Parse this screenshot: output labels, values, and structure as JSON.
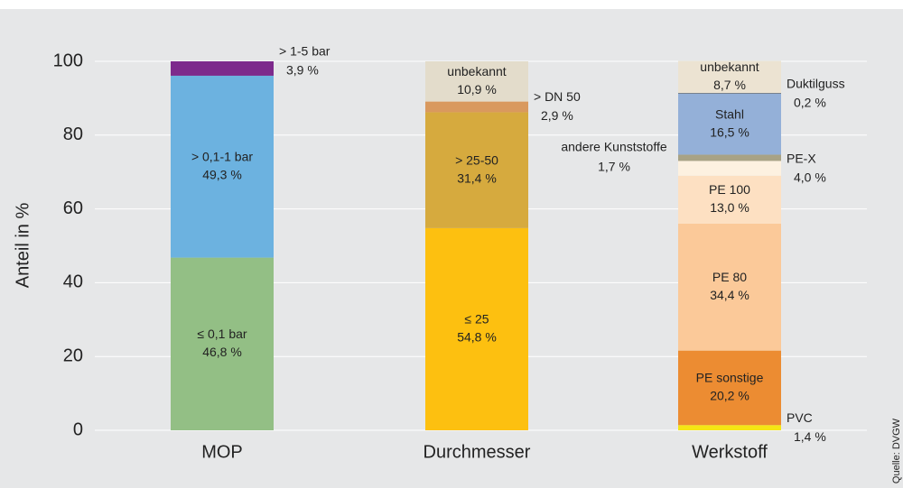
{
  "chart_data": {
    "type": "stacked_bar",
    "ylabel": "Anteil in %",
    "source": "Quelle: DVGW",
    "ylim": [
      0,
      100
    ],
    "yticks": [
      0,
      20,
      40,
      60,
      80,
      100
    ],
    "grid": true,
    "bars": [
      {
        "category": "MOP",
        "segments": [
          {
            "name": "≤ 0,1 bar",
            "value": 46.8,
            "value_label": "46,8 %",
            "color": "#93bf85"
          },
          {
            "name": "> 0,1-1 bar",
            "value": 49.3,
            "value_label": "49,3 %",
            "color": "#6cb2e0"
          },
          {
            "name": "> 1-5 bar",
            "value": 3.9,
            "value_label": "3,9 %",
            "color": "#7d2a8c"
          }
        ]
      },
      {
        "category": "Durchmesser",
        "segments": [
          {
            "name": "≤ 25",
            "value": 54.8,
            "value_label": "54,8 %",
            "color": "#fdc010"
          },
          {
            "name": "> 25-50",
            "value": 31.4,
            "value_label": "31,4 %",
            "color": "#d6aa3e"
          },
          {
            "name": "> DN 50",
            "value": 2.9,
            "value_label": "2,9 %",
            "color": "#d9995e"
          },
          {
            "name": "unbekannt",
            "value": 10.9,
            "value_label": "10,9 %",
            "color": "#e3dccb"
          }
        ]
      },
      {
        "category": "Werkstoff",
        "segments": [
          {
            "name": "PVC",
            "value": 1.4,
            "value_label": "1,4 %",
            "color": "#f5e614"
          },
          {
            "name": "PE sonstige",
            "value": 20.2,
            "value_label": "20,2 %",
            "color": "#ec8c32"
          },
          {
            "name": "PE 80",
            "value": 34.4,
            "value_label": "34,4 %",
            "color": "#fbc999"
          },
          {
            "name": "PE 100",
            "value": 13.0,
            "value_label": "13,0 %",
            "color": "#fde0c2"
          },
          {
            "name": "PE-X",
            "value": 4.0,
            "value_label": "4,0 %",
            "color": "#fdf1e0"
          },
          {
            "name": "andere Kunststoffe",
            "value": 1.7,
            "value_label": "1,7 %",
            "color": "#a8a285"
          },
          {
            "name": "Stahl",
            "value": 16.5,
            "value_label": "16,5 %",
            "color": "#94b0d8"
          },
          {
            "name": "Duktilguss",
            "value": 0.2,
            "value_label": "0,2 %",
            "color": "#4a5a70"
          },
          {
            "name": "unbekannt",
            "value": 8.7,
            "value_label": "8,7 %",
            "color": "#ece3d2"
          }
        ]
      }
    ]
  }
}
